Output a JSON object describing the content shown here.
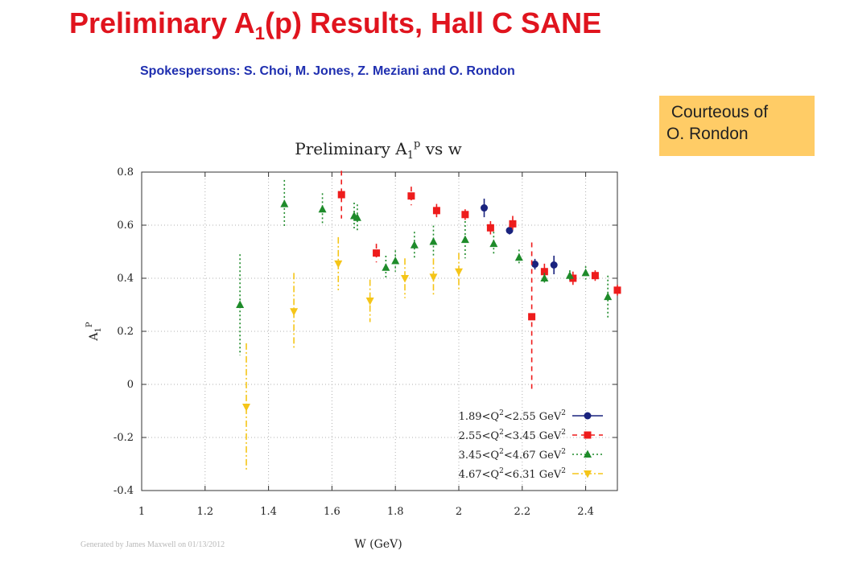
{
  "slide": {
    "title_main": "Preliminary A",
    "title_sub": "1",
    "title_rest": "(p) Results, Hall C SANE",
    "subtitle": "Spokespersons: S. Choi, M. Jones, Z. Meziani and O. Rondon",
    "courtesy_line1": " Courteous of",
    "courtesy_line2": "O. Rondon",
    "courtesy_color": "#ffcc66",
    "title_color": "#e0141e",
    "subtitle_color": "#1f2fb0"
  },
  "chart_data": {
    "type": "scatter",
    "title": "Preliminary A",
    "title_sub": "1",
    "title_sup": "p",
    "title_rest": " vs w",
    "xlabel": "W (GeV)",
    "ylabel_main": "A",
    "ylabel_sub": "1",
    "ylabel_sup": "P",
    "xlim": [
      1.0,
      2.5
    ],
    "ylim": [
      -0.4,
      0.8
    ],
    "xticks": [
      "1",
      "1.2",
      "1.4",
      "1.6",
      "1.8",
      "2",
      "2.2",
      "2.4"
    ],
    "yticks": [
      "-0.4",
      "-0.2",
      "0",
      "0.2",
      "0.4",
      "0.6",
      "0.8"
    ],
    "grid": true,
    "legend_position": "bottom-right",
    "footer": "Generated by James Maxwell on 01/13/2012",
    "series": [
      {
        "name": "1.89<Q²<2.55 GeV²",
        "label_parts": [
          "1.89<Q",
          "2",
          "<2.55 GeV",
          "2"
        ],
        "color": "#1a237e",
        "marker": "circle",
        "line": "solid",
        "points": [
          {
            "x": 2.08,
            "y": 0.665,
            "err": 0.035
          },
          {
            "x": 2.16,
            "y": 0.58,
            "err": 0.015
          },
          {
            "x": 2.24,
            "y": 0.453,
            "err": 0.02
          },
          {
            "x": 2.3,
            "y": 0.45,
            "err": 0.035
          }
        ]
      },
      {
        "name": "2.55<Q²<3.45 GeV²",
        "label_parts": [
          "2.55<Q",
          "2",
          "<3.45 GeV",
          "2"
        ],
        "color": "#ee1c1c",
        "marker": "square",
        "line": "dashed",
        "points": [
          {
            "x": 1.63,
            "y": 0.715,
            "err": 0.09
          },
          {
            "x": 1.74,
            "y": 0.495,
            "err": 0.035
          },
          {
            "x": 1.85,
            "y": 0.71,
            "err": 0.035
          },
          {
            "x": 1.93,
            "y": 0.655,
            "err": 0.025
          },
          {
            "x": 2.02,
            "y": 0.64,
            "err": 0.02
          },
          {
            "x": 2.1,
            "y": 0.59,
            "err": 0.025
          },
          {
            "x": 2.17,
            "y": 0.605,
            "err": 0.03
          },
          {
            "x": 2.23,
            "y": 0.255,
            "err": 0.28
          },
          {
            "x": 2.27,
            "y": 0.425,
            "err": 0.03
          },
          {
            "x": 2.36,
            "y": 0.4,
            "err": 0.025
          },
          {
            "x": 2.43,
            "y": 0.41,
            "err": 0.02
          },
          {
            "x": 2.5,
            "y": 0.355,
            "err": 0.02
          }
        ]
      },
      {
        "name": "3.45<Q²<4.67 GeV²",
        "label_parts": [
          "3.45<Q",
          "2",
          "<4.67 GeV",
          "2"
        ],
        "color": "#1e8b2a",
        "marker": "triangle-up",
        "line": "dotted",
        "points": [
          {
            "x": 1.31,
            "y": 0.3,
            "err": 0.19
          },
          {
            "x": 1.45,
            "y": 0.68,
            "err": 0.09
          },
          {
            "x": 1.57,
            "y": 0.66,
            "err": 0.06
          },
          {
            "x": 1.67,
            "y": 0.635,
            "err": 0.05
          },
          {
            "x": 1.68,
            "y": 0.628,
            "err": 0.05
          },
          {
            "x": 1.77,
            "y": 0.44,
            "err": 0.045
          },
          {
            "x": 1.8,
            "y": 0.465,
            "err": 0.04
          },
          {
            "x": 1.86,
            "y": 0.525,
            "err": 0.05
          },
          {
            "x": 1.92,
            "y": 0.538,
            "err": 0.06
          },
          {
            "x": 2.02,
            "y": 0.545,
            "err": 0.07
          },
          {
            "x": 2.11,
            "y": 0.53,
            "err": 0.045
          },
          {
            "x": 2.19,
            "y": 0.478,
            "err": 0.03
          },
          {
            "x": 2.27,
            "y": 0.4,
            "err": 0.02
          },
          {
            "x": 2.35,
            "y": 0.41,
            "err": 0.02
          },
          {
            "x": 2.4,
            "y": 0.42,
            "err": 0.025
          },
          {
            "x": 2.47,
            "y": 0.33,
            "err": 0.08
          }
        ]
      },
      {
        "name": "4.67<Q²<6.31 GeV²",
        "label_parts": [
          "4.67<Q",
          "2",
          "<6.31 GeV",
          "2"
        ],
        "color": "#f5c518",
        "marker": "triangle-down",
        "line": "dashdot",
        "points": [
          {
            "x": 1.33,
            "y": -0.085,
            "err": 0.24
          },
          {
            "x": 1.48,
            "y": 0.275,
            "err": 0.145
          },
          {
            "x": 1.62,
            "y": 0.455,
            "err": 0.1
          },
          {
            "x": 1.72,
            "y": 0.315,
            "err": 0.08
          },
          {
            "x": 1.83,
            "y": 0.4,
            "err": 0.075
          },
          {
            "x": 1.92,
            "y": 0.405,
            "err": 0.07
          },
          {
            "x": 2.0,
            "y": 0.425,
            "err": 0.07
          }
        ]
      }
    ]
  }
}
